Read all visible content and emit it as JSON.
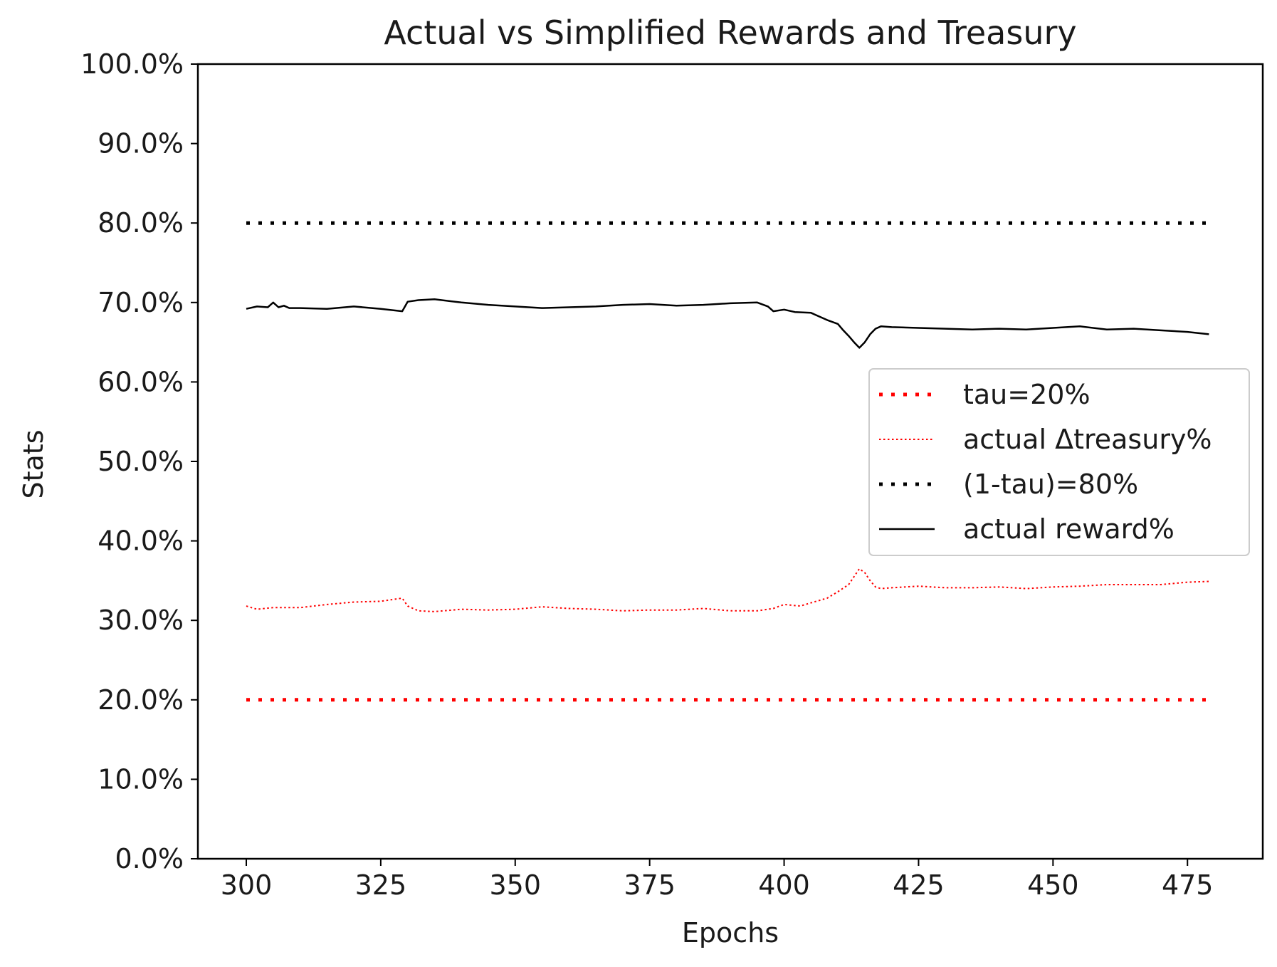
{
  "chart_data": {
    "type": "line",
    "title": "Actual vs Simplified Rewards and Treasury",
    "xlabel": "Epochs",
    "ylabel": "Stats",
    "xlim": [
      291,
      489
    ],
    "ylim": [
      0,
      100
    ],
    "xticks": [
      300,
      325,
      350,
      375,
      400,
      425,
      450,
      475
    ],
    "xtick_labels": [
      "300",
      "325",
      "350",
      "375",
      "400",
      "425",
      "450",
      "475"
    ],
    "yticks": [
      0,
      10,
      20,
      30,
      40,
      50,
      60,
      70,
      80,
      90,
      100
    ],
    "ytick_labels": [
      "0.0%",
      "10.0%",
      "20.0%",
      "30.0%",
      "40.0%",
      "50.0%",
      "60.0%",
      "70.0%",
      "80.0%",
      "90.0%",
      "100.0%"
    ],
    "grid": false,
    "legend_position": "center-right",
    "series": [
      {
        "name": "tau=20%",
        "color": "#ff0000",
        "style": "dotted-thick",
        "x": [
          300,
          480
        ],
        "y": [
          20,
          20
        ]
      },
      {
        "name": "actual Δtreasury%",
        "color": "#ff0000",
        "style": "dotted-thin",
        "x": [
          300,
          302,
          305,
          310,
          315,
          320,
          325,
          329,
          330,
          332,
          335,
          340,
          345,
          350,
          355,
          360,
          365,
          370,
          375,
          380,
          385,
          390,
          395,
          398,
          400,
          403,
          405,
          408,
          410,
          412,
          413,
          414,
          415,
          416,
          417,
          418,
          420,
          425,
          430,
          435,
          440,
          445,
          450,
          455,
          460,
          465,
          470,
          475,
          479
        ],
        "y": [
          31.8,
          31.4,
          31.6,
          31.6,
          32.0,
          32.3,
          32.4,
          32.8,
          31.8,
          31.2,
          31.1,
          31.4,
          31.3,
          31.4,
          31.7,
          31.5,
          31.4,
          31.2,
          31.3,
          31.3,
          31.5,
          31.2,
          31.2,
          31.5,
          32.0,
          31.8,
          32.2,
          32.8,
          33.6,
          34.5,
          35.5,
          36.5,
          36.0,
          35.0,
          34.2,
          34.0,
          34.1,
          34.3,
          34.1,
          34.1,
          34.2,
          34.0,
          34.2,
          34.3,
          34.5,
          34.5,
          34.5,
          34.8,
          34.9
        ]
      },
      {
        "name": "(1-tau)=80%",
        "color": "#000000",
        "style": "dotted-thick",
        "x": [
          300,
          480
        ],
        "y": [
          80,
          80
        ]
      },
      {
        "name": "actual reward%",
        "color": "#000000",
        "style": "solid",
        "x": [
          300,
          302,
          304,
          305,
          306,
          307,
          308,
          310,
          315,
          320,
          325,
          329,
          330,
          332,
          335,
          340,
          345,
          350,
          355,
          360,
          365,
          370,
          375,
          380,
          385,
          390,
          395,
          397,
          398,
          400,
          402,
          405,
          408,
          410,
          411,
          412,
          413,
          414,
          415,
          416,
          417,
          418,
          420,
          425,
          430,
          435,
          440,
          445,
          450,
          455,
          460,
          465,
          470,
          475,
          479
        ],
        "y": [
          69.2,
          69.5,
          69.4,
          70.0,
          69.4,
          69.6,
          69.3,
          69.3,
          69.2,
          69.5,
          69.2,
          68.9,
          70.1,
          70.3,
          70.4,
          70.0,
          69.7,
          69.5,
          69.3,
          69.4,
          69.5,
          69.7,
          69.8,
          69.6,
          69.7,
          69.9,
          70.0,
          69.5,
          68.9,
          69.1,
          68.8,
          68.7,
          67.8,
          67.3,
          66.5,
          65.8,
          65.0,
          64.3,
          65.0,
          66.0,
          66.7,
          67.0,
          66.9,
          66.8,
          66.7,
          66.6,
          66.7,
          66.6,
          66.8,
          67.0,
          66.6,
          66.7,
          66.5,
          66.3,
          66.0
        ]
      }
    ]
  }
}
